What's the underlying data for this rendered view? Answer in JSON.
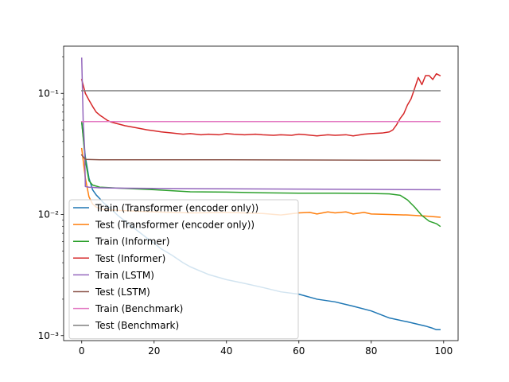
{
  "chart_data": {
    "type": "line",
    "yscale": "log",
    "xlim": [
      -5,
      104
    ],
    "ylim": [
      0.00091,
      0.245
    ],
    "xticks": [
      0,
      20,
      40,
      60,
      80,
      100
    ],
    "xtick_labels": [
      "0",
      "20",
      "40",
      "60",
      "80",
      "100"
    ],
    "yticks": [
      0.001,
      0.01,
      0.1
    ],
    "ytick_labels": [
      "10⁻³",
      "10⁻²",
      "10⁻¹"
    ],
    "legend_position": "lower-left",
    "series": [
      {
        "name": "Train (Transformer (encoder only))",
        "color": "#1f77b4",
        "points": [
          [
            0,
            0.058
          ],
          [
            1,
            0.03
          ],
          [
            2,
            0.02
          ],
          [
            3,
            0.016
          ],
          [
            4,
            0.0145
          ],
          [
            5,
            0.0135
          ],
          [
            6,
            0.0125
          ],
          [
            8,
            0.0112
          ],
          [
            10,
            0.0098
          ],
          [
            12,
            0.0088
          ],
          [
            15,
            0.0075
          ],
          [
            18,
            0.0064
          ],
          [
            20,
            0.0058
          ],
          [
            22,
            0.0052
          ],
          [
            25,
            0.0046
          ],
          [
            28,
            0.004
          ],
          [
            30,
            0.0037
          ],
          [
            35,
            0.0032
          ],
          [
            40,
            0.0029
          ],
          [
            45,
            0.0027
          ],
          [
            50,
            0.0025
          ],
          [
            55,
            0.0023
          ],
          [
            60,
            0.0022
          ],
          [
            65,
            0.002
          ],
          [
            70,
            0.0019
          ],
          [
            75,
            0.00175
          ],
          [
            80,
            0.0016
          ],
          [
            85,
            0.0014
          ],
          [
            90,
            0.0013
          ],
          [
            95,
            0.0012
          ],
          [
            97,
            0.00115
          ],
          [
            98,
            0.00112
          ],
          [
            99,
            0.00112
          ]
        ]
      },
      {
        "name": "Test (Transformer (encoder only))",
        "color": "#ff7f0e",
        "points": [
          [
            0,
            0.035
          ],
          [
            1,
            0.02
          ],
          [
            2,
            0.014
          ],
          [
            3,
            0.0122
          ],
          [
            4,
            0.0115
          ],
          [
            6,
            0.011
          ],
          [
            10,
            0.0108
          ],
          [
            20,
            0.0105
          ],
          [
            30,
            0.0103
          ],
          [
            40,
            0.0104
          ],
          [
            50,
            0.0102
          ],
          [
            55,
            0.0099
          ],
          [
            60,
            0.0103
          ],
          [
            63,
            0.0104
          ],
          [
            65,
            0.0101
          ],
          [
            68,
            0.0105
          ],
          [
            70,
            0.0103
          ],
          [
            73,
            0.0105
          ],
          [
            75,
            0.0101
          ],
          [
            78,
            0.0104
          ],
          [
            80,
            0.0101
          ],
          [
            85,
            0.01
          ],
          [
            90,
            0.0099
          ],
          [
            95,
            0.0097
          ],
          [
            99,
            0.0095
          ]
        ]
      },
      {
        "name": "Train (Informer)",
        "color": "#2ca02c",
        "points": [
          [
            0,
            0.058
          ],
          [
            1,
            0.028
          ],
          [
            2,
            0.019
          ],
          [
            3,
            0.0175
          ],
          [
            5,
            0.0168
          ],
          [
            10,
            0.0165
          ],
          [
            20,
            0.016
          ],
          [
            30,
            0.0154
          ],
          [
            40,
            0.0153
          ],
          [
            50,
            0.0151
          ],
          [
            60,
            0.015
          ],
          [
            70,
            0.015
          ],
          [
            80,
            0.0149
          ],
          [
            85,
            0.0148
          ],
          [
            88,
            0.0144
          ],
          [
            90,
            0.0132
          ],
          [
            92,
            0.0115
          ],
          [
            94,
            0.0098
          ],
          [
            96,
            0.0088
          ],
          [
            98,
            0.0084
          ],
          [
            99,
            0.008
          ]
        ]
      },
      {
        "name": "Test (Informer)",
        "color": "#d62728",
        "points": [
          [
            0,
            0.13
          ],
          [
            1,
            0.1
          ],
          [
            2,
            0.088
          ],
          [
            3,
            0.078
          ],
          [
            4,
            0.07
          ],
          [
            5,
            0.066
          ],
          [
            6,
            0.063
          ],
          [
            7,
            0.06
          ],
          [
            8,
            0.058
          ],
          [
            10,
            0.056
          ],
          [
            12,
            0.054
          ],
          [
            15,
            0.052
          ],
          [
            18,
            0.05
          ],
          [
            20,
            0.049
          ],
          [
            22,
            0.048
          ],
          [
            25,
            0.047
          ],
          [
            28,
            0.046
          ],
          [
            30,
            0.0465
          ],
          [
            33,
            0.0455
          ],
          [
            35,
            0.046
          ],
          [
            38,
            0.0455
          ],
          [
            40,
            0.0465
          ],
          [
            42,
            0.046
          ],
          [
            45,
            0.0455
          ],
          [
            48,
            0.046
          ],
          [
            50,
            0.0455
          ],
          [
            53,
            0.045
          ],
          [
            55,
            0.0455
          ],
          [
            58,
            0.045
          ],
          [
            60,
            0.046
          ],
          [
            62,
            0.0455
          ],
          [
            65,
            0.0445
          ],
          [
            68,
            0.0455
          ],
          [
            70,
            0.045
          ],
          [
            73,
            0.0455
          ],
          [
            75,
            0.0445
          ],
          [
            78,
            0.046
          ],
          [
            80,
            0.0465
          ],
          [
            83,
            0.047
          ],
          [
            85,
            0.048
          ],
          [
            86,
            0.05
          ],
          [
            87,
            0.055
          ],
          [
            88,
            0.062
          ],
          [
            89,
            0.068
          ],
          [
            90,
            0.08
          ],
          [
            91,
            0.09
          ],
          [
            92,
            0.11
          ],
          [
            93,
            0.135
          ],
          [
            94,
            0.118
          ],
          [
            95,
            0.14
          ],
          [
            96,
            0.14
          ],
          [
            97,
            0.13
          ],
          [
            98,
            0.145
          ],
          [
            99,
            0.14
          ]
        ]
      },
      {
        "name": "Train (LSTM)",
        "color": "#9467bd",
        "points": [
          [
            0,
            0.195
          ],
          [
            0.4,
            0.06
          ],
          [
            0.8,
            0.035
          ],
          [
            1,
            0.017
          ],
          [
            2,
            0.0168
          ],
          [
            5,
            0.0166
          ],
          [
            10,
            0.0165
          ],
          [
            20,
            0.0164
          ],
          [
            40,
            0.0163
          ],
          [
            60,
            0.0162
          ],
          [
            80,
            0.0161
          ],
          [
            99,
            0.016
          ]
        ]
      },
      {
        "name": "Test (LSTM)",
        "color": "#8c564b",
        "points": [
          [
            0,
            0.031
          ],
          [
            1,
            0.0285
          ],
          [
            5,
            0.0283
          ],
          [
            10,
            0.0283
          ],
          [
            20,
            0.0283
          ],
          [
            40,
            0.0283
          ],
          [
            60,
            0.0282
          ],
          [
            80,
            0.0281
          ],
          [
            99,
            0.028
          ]
        ]
      },
      {
        "name": "Train (Benchmark)",
        "color": "#e377c2",
        "points": [
          [
            0,
            0.0585
          ],
          [
            99,
            0.0585
          ]
        ]
      },
      {
        "name": "Test (Benchmark)",
        "color": "#7f7f7f",
        "points": [
          [
            0,
            0.105
          ],
          [
            99,
            0.105
          ]
        ]
      }
    ]
  }
}
